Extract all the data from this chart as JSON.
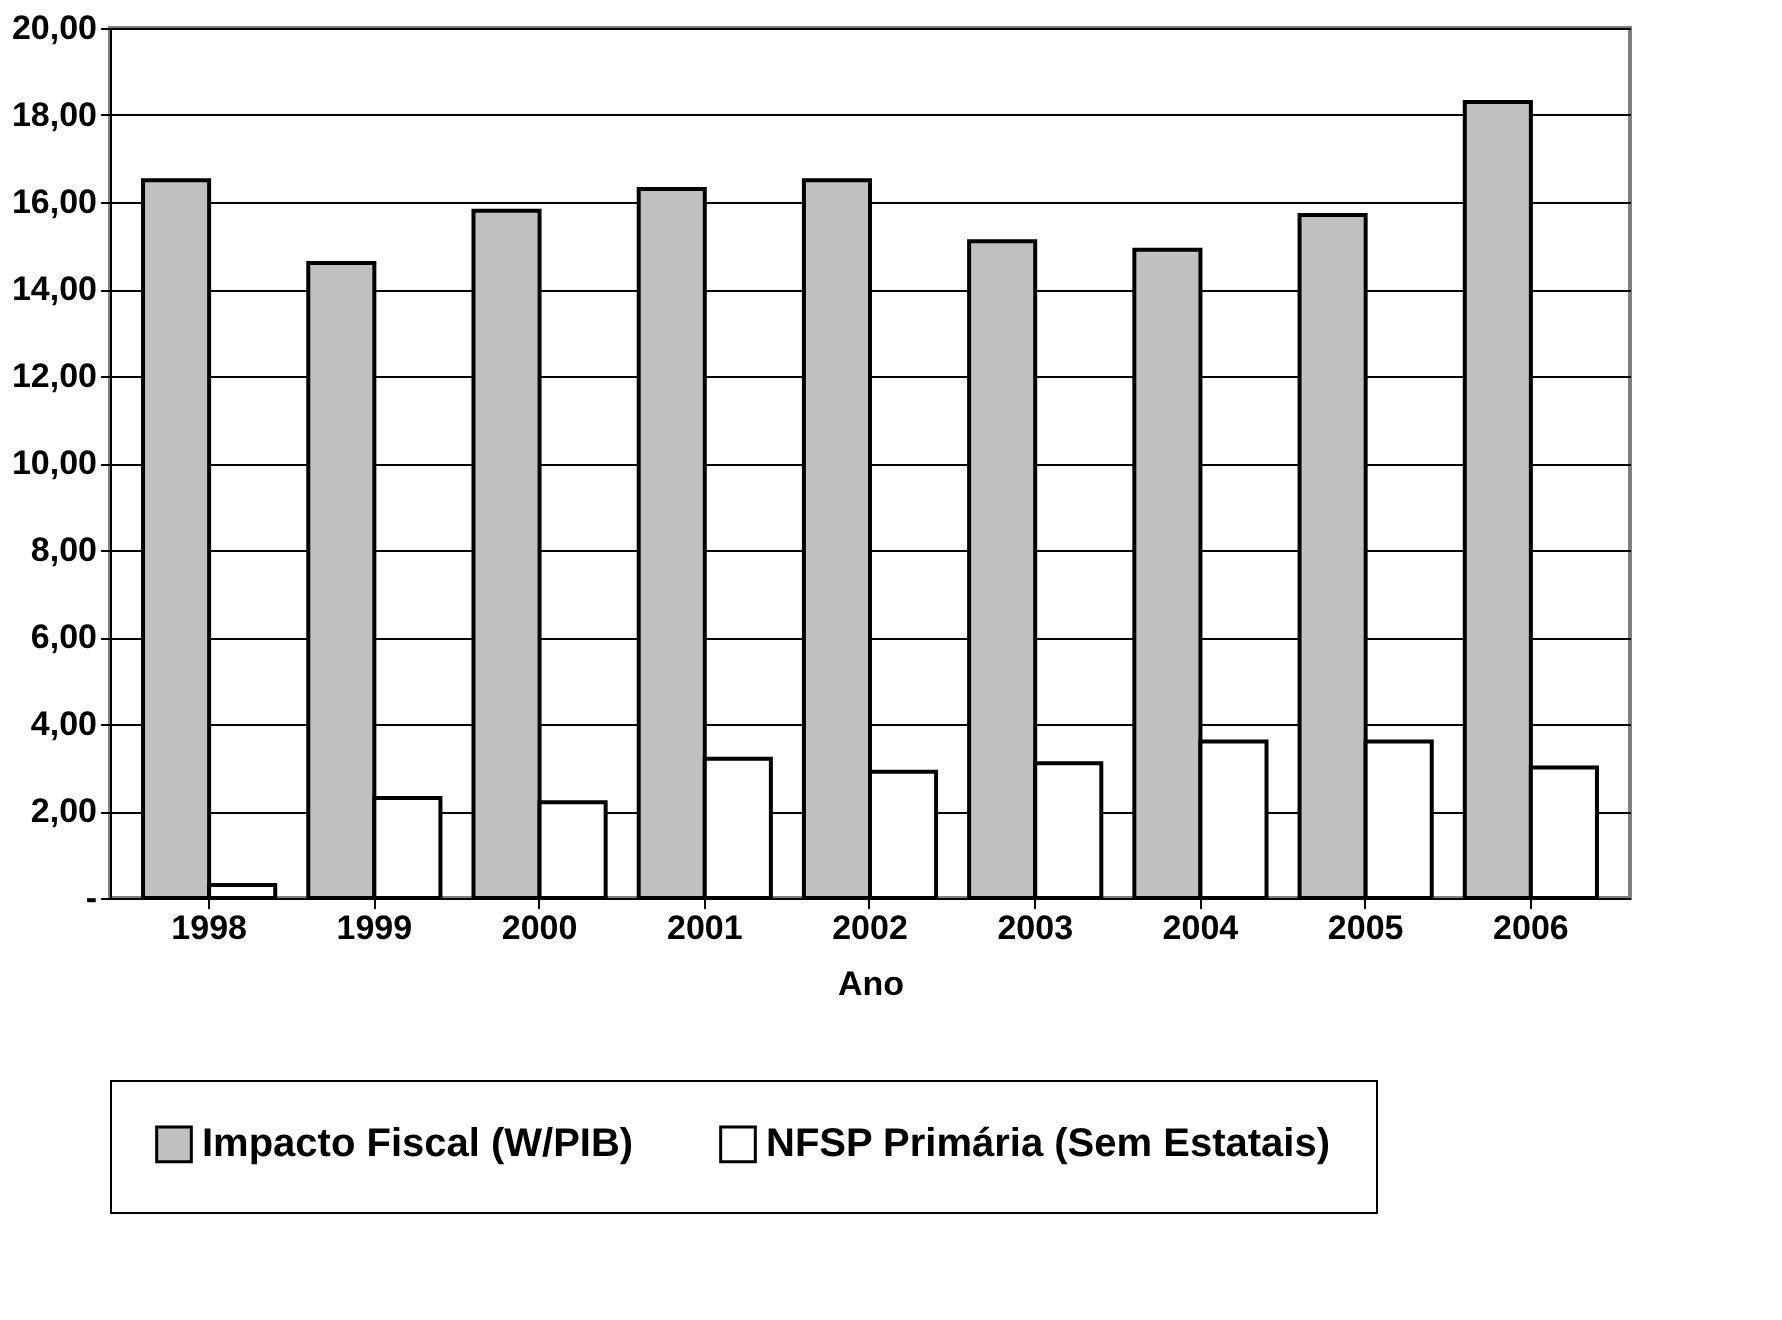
{
  "chart_data": {
    "type": "bar",
    "xlabel": "Ano",
    "categories": [
      "1998",
      "1999",
      "2000",
      "2001",
      "2002",
      "2003",
      "2004",
      "2005",
      "2006"
    ],
    "series": [
      {
        "name": "Impacto Fiscal (W/PIB)",
        "color": "#c0c0c0",
        "values": [
          16.5,
          14.6,
          15.8,
          16.3,
          16.5,
          15.1,
          14.9,
          15.7,
          18.3
        ]
      },
      {
        "name": "NFSP Primária (Sem Estatais)",
        "color": "#ffffff",
        "values": [
          0.3,
          2.3,
          2.2,
          3.2,
          2.9,
          3.1,
          3.6,
          3.6,
          3.0
        ]
      }
    ],
    "ylim": [
      0,
      20
    ],
    "yticks": [
      {
        "value": 0,
        "label": "-"
      },
      {
        "value": 2,
        "label": "2,00"
      },
      {
        "value": 4,
        "label": "4,00"
      },
      {
        "value": 6,
        "label": "6,00"
      },
      {
        "value": 8,
        "label": "8,00"
      },
      {
        "value": 10,
        "label": "10,00"
      },
      {
        "value": 12,
        "label": "12,00"
      },
      {
        "value": 14,
        "label": "14,00"
      },
      {
        "value": 16,
        "label": "16,00"
      },
      {
        "value": 18,
        "label": "18,00"
      },
      {
        "value": 20,
        "label": "20,00"
      }
    ],
    "grid": "y",
    "legend": "bottom"
  }
}
